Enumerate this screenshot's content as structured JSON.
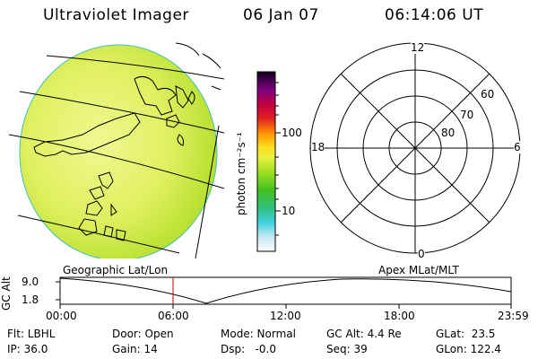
{
  "header": {
    "title": "Ultraviolet Imager",
    "date": "06 Jan 07",
    "time": "06:14:06 UT"
  },
  "colorbar": {
    "unit_label": "photon cm⁻²s⁻¹",
    "ticks": [
      "100",
      "10"
    ],
    "scale": "log"
  },
  "polar": {
    "mlt_labels": [
      "12",
      "18",
      "6",
      "0"
    ],
    "lat_labels": [
      "60",
      "70",
      "80"
    ]
  },
  "timeline": {
    "left_title": "Geographic Lat/Lon",
    "right_title": "Apex MLat/MLT",
    "axis_label": "GC Alt",
    "y_ticks": [
      "9.0",
      "1.8"
    ],
    "x_ticks": [
      "00:00",
      "06:00",
      "12:00",
      "18:00",
      "23:59"
    ]
  },
  "status": {
    "flt": "Flt: LBHL",
    "ip": "IP: 36.0",
    "door": "Door: Open",
    "gain": "Gain: 14",
    "mode": "Mode: Normal",
    "dsp": "Dsp:   -0.0",
    "gcalt": "GC Alt: 4.4 Re",
    "seq": "Seq: 39",
    "glat": "GLat:  23.5",
    "glon": "GLon: 122.4"
  },
  "colors": {
    "disk_fill": "#d8f060",
    "current_time_marker": "#cc0000"
  }
}
